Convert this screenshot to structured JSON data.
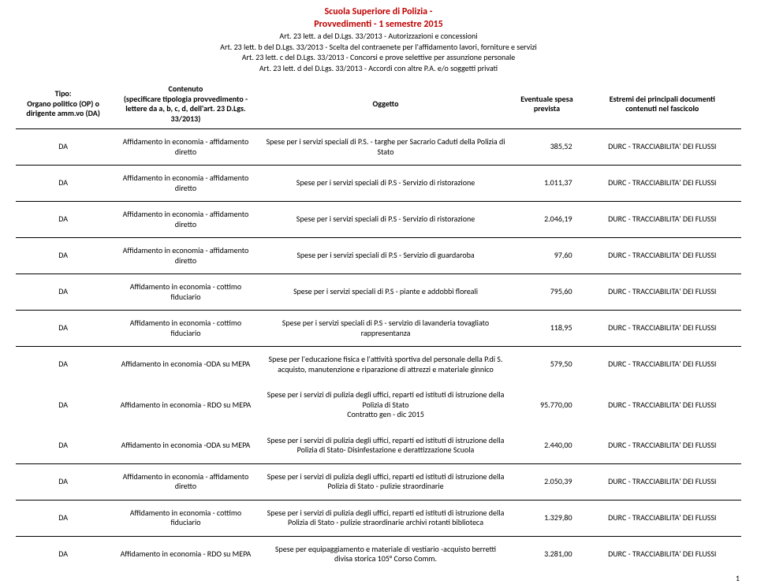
{
  "header": {
    "title_line1": "Scuola Superiore di Polizia -",
    "title_line2": "Provvedimenti - 1 semestre 2015",
    "line_a": "Art. 23 lett. a del D.Lgs. 33/2013 - Autorizzazioni e concessioni",
    "line_b": "Art. 23 lett. b del D.Lgs. 33/2013 - Scelta del contraenete per l'affidamento lavori, forniture e servizi",
    "line_c": "Art. 23 lett. c del D.Lgs. 33/2013 - Concorsi e prove selettive per assunzione personale",
    "line_d": "Art. 23 lett. d del D.Lgs. 33/2013 - Accordi con altre P.A. e/o soggetti privati"
  },
  "columns": {
    "c1_l1": "Tipo:",
    "c1_l2": "Organo politico (OP) o",
    "c1_l3": "dirigente amm.vo (DA)",
    "c2_l1": "Contenuto",
    "c2_l2": "(specificare tipologia provvedimento -",
    "c2_l3": "lettere da a, b, c, d, dell'art. 23 D.Lgs.",
    "c2_l4": "33/2013)",
    "c3": "Oggetto",
    "c4_l1": "Eventuale spesa",
    "c4_l2": "prevista",
    "c5_l1": "Estremi dei principali documenti",
    "c5_l2": "contenuti nel fascicolo"
  },
  "rows": [
    {
      "tipo": "DA",
      "contenuto": "Affidamento in economia - affidamento diretto",
      "oggetto": "Spese per i servizi speciali di P.S. -  targhe per Sacrario Caduti della Polizia di Stato",
      "spesa": "385,52",
      "estremi": "DURC - TRACCIABILITA' DEI FLUSSI",
      "sep": true
    },
    {
      "tipo": "DA",
      "contenuto": "Affidamento in economia - affidamento diretto",
      "oggetto": "Spese per i servizi speciali di P.S - Servizio di ristorazione",
      "spesa": "1.011,37",
      "estremi": "DURC - TRACCIABILITA' DEI FLUSSI",
      "sep": true
    },
    {
      "tipo": "DA",
      "contenuto": "Affidamento in economia - affidamento diretto",
      "oggetto": "Spese per i servizi speciali di P.S - Servizio di ristorazione",
      "spesa": "2.046,19",
      "estremi": "DURC - TRACCIABILITA' DEI FLUSSI",
      "sep": true
    },
    {
      "tipo": "DA",
      "contenuto": "Affidamento in economia - affidamento diretto",
      "oggetto": "Spese per i servizi speciali di P.S - Servizio di guardaroba",
      "spesa": "97,60",
      "estremi": "DURC - TRACCIABILITA' DEI FLUSSI",
      "sep": true
    },
    {
      "tipo": "DA",
      "contenuto": "Affidamento in economia - cottimo fiduciario",
      "oggetto": "Spese per i servizi speciali di P.S - piante e addobbi floreali",
      "spesa": "795,60",
      "estremi": "DURC - TRACCIABILITA' DEI FLUSSI",
      "sep": true
    },
    {
      "tipo": "DA",
      "contenuto": "Affidamento in economia - cottimo fiduciario",
      "oggetto": "Spese per i servizi speciali di P.S - servizio di lavanderia tovagliato rappresentanza",
      "spesa": "118,95",
      "estremi": "DURC - TRACCIABILITA' DEI FLUSSI",
      "sep": true
    },
    {
      "tipo": "DA",
      "contenuto": "Affidamento in economia -ODA su MEPA",
      "oggetto": "Spese per l'educazione fisica e l'attività sportiva del personale della P.di S. acquisto, manutenzione e riparazione di attrezzi e materiale ginnico",
      "spesa": "579,50",
      "estremi": "DURC - TRACCIABILITA' DEI FLUSSI",
      "sep": true,
      "tight": true
    },
    {
      "tipo": "DA",
      "contenuto": "Affidamento in economia - RDO su MEPA",
      "oggetto": "Spese per i servizi di pulizia degli uffici, reparti ed istituti di istruzione della Polizia di Stato\nContratto gen - dic 2015",
      "spesa": "95.770,00",
      "estremi": "DURC - TRACCIABILITA' DEI FLUSSI",
      "sep": false,
      "tight": true
    },
    {
      "tipo": "DA",
      "contenuto": "Affidamento in economia -ODA su MEPA",
      "oggetto": "Spese per i servizi di pulizia degli uffici, reparti ed istituti di istruzione della Polizia di Stato- Disinfestazione e derattizzazione Scuola",
      "spesa": "2.440,00",
      "estremi": "DURC - TRACCIABILITA' DEI FLUSSI",
      "sep": false,
      "tight": true
    },
    {
      "tipo": "DA",
      "contenuto": "Affidamento in economia - affidamento diretto",
      "oggetto": "Spese per i servizi di pulizia degli uffici, reparti ed istituti di istruzione della Polizia di Stato - pulizie straordinarie",
      "spesa": "2.050,39",
      "estremi": "DURC - TRACCIABILITA' DEI FLUSSI",
      "sep": true
    },
    {
      "tipo": "DA",
      "contenuto": "Affidamento in economia - cottimo fiduciario",
      "oggetto": "Spese per i servizi di pulizia degli uffici, reparti ed istituti di istruzione della Polizia di Stato - pulizie straordinarie  archivi rotanti biblioteca",
      "spesa": "1.329,80",
      "estremi": "DURC - TRACCIABILITA' DEI FLUSSI",
      "sep": true
    },
    {
      "tipo": "DA",
      "contenuto": "Affidamento in economia - RDO su MEPA",
      "oggetto": "Spese per equipaggiamento e materiale di vestiario -acquisto berretti divisa storica   105° Corso Comm.",
      "spesa": "3.281,00",
      "estremi": "DURC - TRACCIABILITA' DEI FLUSSI",
      "sep": true
    }
  ],
  "page_number": "1"
}
